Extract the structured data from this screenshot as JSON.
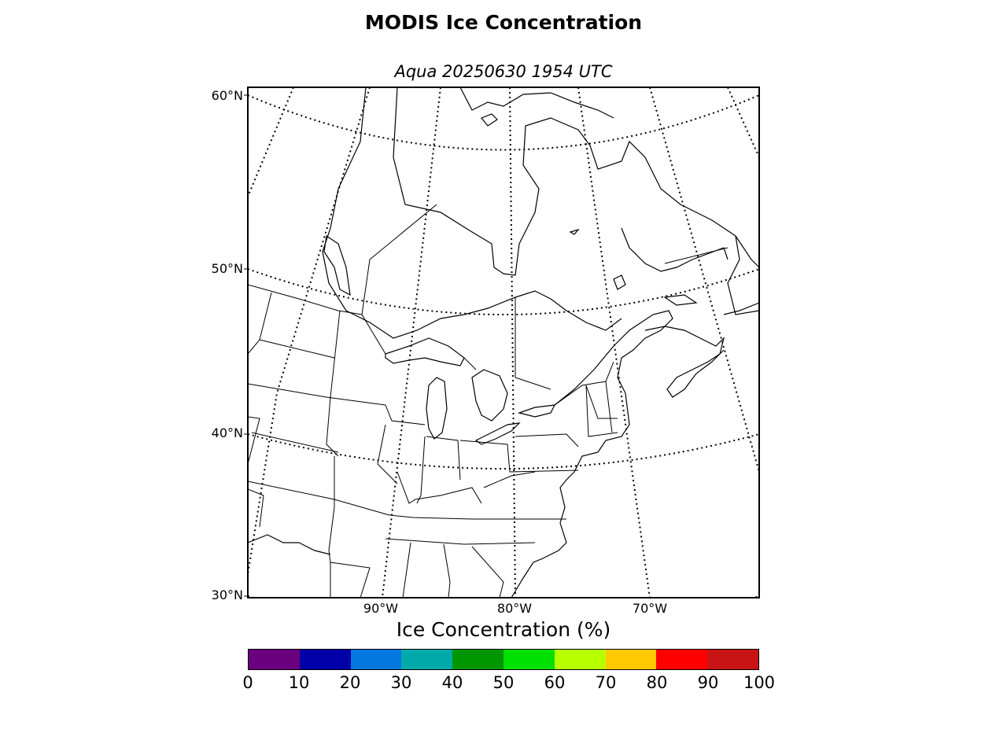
{
  "title": "MODIS Ice Concentration",
  "subtitle": "Aqua 20250630 1954 UTC",
  "lat_labels": [
    "60°N",
    "50°N",
    "40°N",
    "30°N"
  ],
  "lon_labels": [
    "90°W",
    "80°W",
    "70°W"
  ],
  "colorbar": {
    "title": "Ice Concentration (%)",
    "ticks": [
      "0",
      "10",
      "20",
      "30",
      "40",
      "50",
      "60",
      "70",
      "80",
      "90",
      "100"
    ],
    "colors": [
      "#6b007f",
      "#0000a8",
      "#0078e0",
      "#00aaaa",
      "#009600",
      "#00e000",
      "#b8ff00",
      "#ffc800",
      "#ff0000",
      "#c81414"
    ]
  }
}
